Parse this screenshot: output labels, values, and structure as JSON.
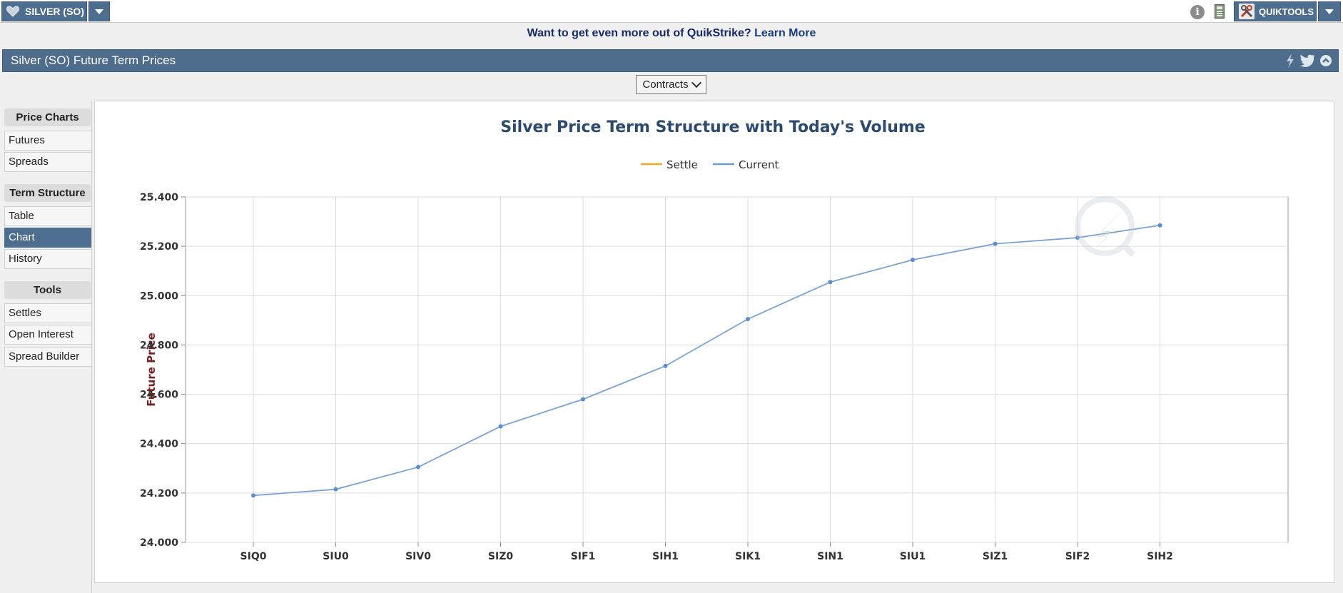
{
  "topbar": {
    "product_label": "SILVER (SO)",
    "quiktools_label": "QUIKTOOLS",
    "icons": [
      "heart-icon",
      "caret-down-icon",
      "info-icon",
      "calculator-icon",
      "tools-icon"
    ]
  },
  "promo": {
    "text": "Want to get even more out of QuikStrike?",
    "link": "Learn More"
  },
  "panel": {
    "title": "Silver (SO) Future Term Prices",
    "icons": [
      "lightning-icon",
      "twitter-icon",
      "collapse-icon"
    ]
  },
  "contracts_button": "Contracts",
  "sidebar": {
    "sections": [
      {
        "heading": "Price Charts",
        "items": [
          "Futures",
          "Spreads"
        ]
      },
      {
        "heading": "Term Structure",
        "items": [
          "Table",
          "Chart",
          "History"
        ]
      },
      {
        "heading": "Tools",
        "items": [
          "Settles",
          "Open Interest",
          "Spread Builder"
        ]
      }
    ],
    "active_item": "Chart"
  },
  "colors": {
    "accent": "#4d6e8f",
    "settle_line": "#f5a623",
    "current_line": "#6b9bd2",
    "title": "#2c4a6e",
    "ylabel": "#7a1f1f"
  },
  "chart_data": {
    "type": "line",
    "title": "Silver Price Term Structure with Today's Volume",
    "xlabel": "",
    "ylabel": "Future Price",
    "legend": [
      "Settle",
      "Current"
    ],
    "legend_position": "top-center",
    "categories": [
      "SIQ0",
      "SIU0",
      "SIV0",
      "SIZ0",
      "SIF1",
      "SIH1",
      "SIK1",
      "SIN1",
      "SIU1",
      "SIZ1",
      "SIF2",
      "SIH2"
    ],
    "series": [
      {
        "name": "Current",
        "values": [
          24.19,
          24.215,
          24.305,
          24.47,
          24.58,
          24.715,
          24.905,
          25.055,
          25.145,
          25.21,
          25.235,
          25.285
        ]
      }
    ],
    "ylim": [
      24.0,
      25.4
    ],
    "yticks": [
      "24.000",
      "24.200",
      "24.400",
      "24.600",
      "24.800",
      "25.000",
      "25.200",
      "25.400"
    ],
    "grid": true
  }
}
